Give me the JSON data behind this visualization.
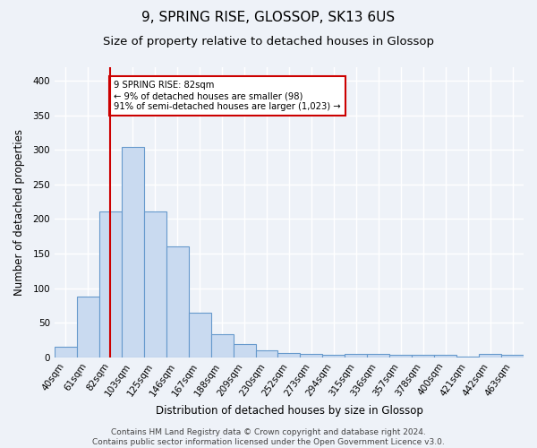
{
  "title": "9, SPRING RISE, GLOSSOP, SK13 6US",
  "subtitle": "Size of property relative to detached houses in Glossop",
  "xlabel": "Distribution of detached houses by size in Glossop",
  "ylabel": "Number of detached properties",
  "categories": [
    "40sqm",
    "61sqm",
    "82sqm",
    "103sqm",
    "125sqm",
    "146sqm",
    "167sqm",
    "188sqm",
    "209sqm",
    "230sqm",
    "252sqm",
    "273sqm",
    "294sqm",
    "315sqm",
    "336sqm",
    "357sqm",
    "378sqm",
    "400sqm",
    "421sqm",
    "442sqm",
    "463sqm"
  ],
  "values": [
    15,
    88,
    211,
    304,
    211,
    160,
    64,
    33,
    19,
    10,
    6,
    5,
    3,
    4,
    4,
    3,
    3,
    3,
    1,
    4,
    3
  ],
  "bar_color": "#c9daf0",
  "bar_edge_color": "#6699cc",
  "vline_x": 2,
  "vline_color": "#cc0000",
  "annotation_text": "9 SPRING RISE: 82sqm\n← 9% of detached houses are smaller (98)\n91% of semi-detached houses are larger (1,023) →",
  "annotation_box_color": "#ffffff",
  "annotation_box_edge": "#cc0000",
  "footnote": "Contains HM Land Registry data © Crown copyright and database right 2024.\nContains public sector information licensed under the Open Government Licence v3.0.",
  "bg_color": "#eef2f8",
  "plot_bg_color": "#eef2f8",
  "grid_color": "#ffffff",
  "ylim": [
    0,
    420
  ],
  "title_fontsize": 11,
  "subtitle_fontsize": 9.5,
  "axis_label_fontsize": 8.5,
  "tick_fontsize": 7.5,
  "footnote_fontsize": 6.5
}
